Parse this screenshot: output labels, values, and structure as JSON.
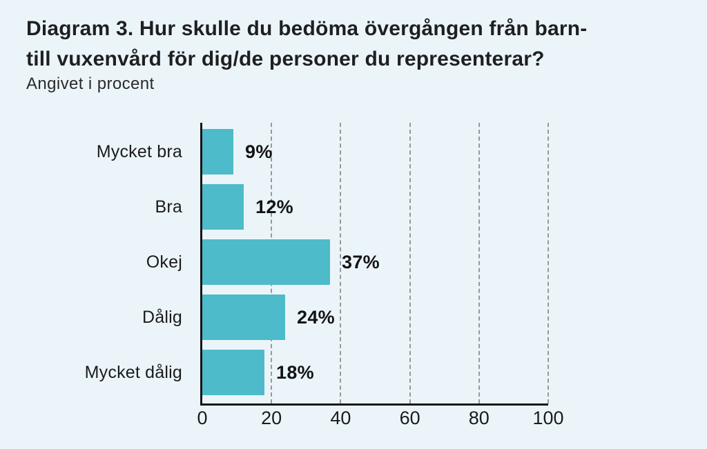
{
  "page": {
    "background_color": "#ebf5f9"
  },
  "header": {
    "title_line1": "Diagram 3. Hur skulle du bedöma övergången från barn-",
    "title_line2": "till vuxenvård för dig/de personer du representerar?",
    "subtitle": "Angivet i procent"
  },
  "chart_data": {
    "type": "bar",
    "orientation": "horizontal",
    "title": "Diagram 3. Hur skulle du bedöma övergången från barn- till vuxenvård för dig/de personer du representerar?",
    "subtitle": "Angivet i procent",
    "categories": [
      "Mycket bra",
      "Bra",
      "Okej",
      "Dålig",
      "Mycket dålig"
    ],
    "values": [
      9,
      12,
      37,
      24,
      18
    ],
    "value_labels": [
      "9%",
      "12%",
      "37%",
      "24%",
      "18%"
    ],
    "xlabel": "",
    "ylabel": "",
    "xlim": [
      0,
      100
    ],
    "x_ticks": [
      0,
      20,
      40,
      60,
      80,
      100
    ],
    "grid": "vertical-dashed",
    "legend": "none",
    "bar_color": "#4dbbc9",
    "axis_color": "#141416",
    "grid_color": "#97989a",
    "label_color": "#1b1b1d",
    "value_label_color": "#131315"
  }
}
